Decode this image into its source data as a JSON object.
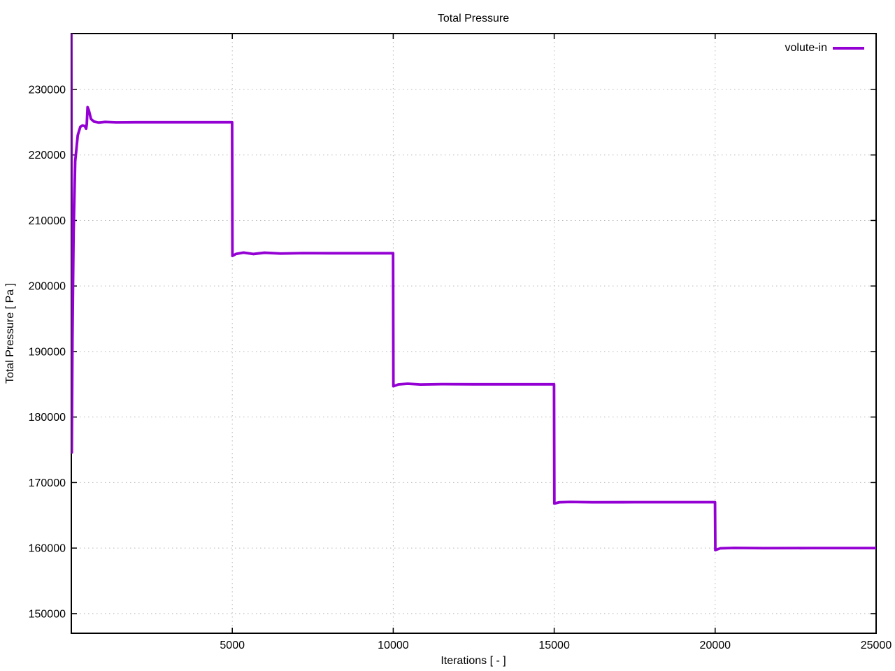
{
  "chart_data": {
    "type": "line",
    "title": "Total Pressure",
    "xlabel": "Iterations [ - ]",
    "ylabel": "Total Pressure [ Pa ]",
    "xlim": [
      0,
      25000
    ],
    "ylim": [
      147000,
      238530
    ],
    "x_ticks": [
      5000,
      10000,
      15000,
      20000,
      25000
    ],
    "y_ticks": [
      150000,
      160000,
      170000,
      180000,
      190000,
      200000,
      210000,
      220000,
      230000
    ],
    "grid": true,
    "grid_style": "dotted",
    "legend_position": "top-right-inside",
    "colors": {
      "line": "#9400d3",
      "grid": "#b8b8b8",
      "border": "#000000"
    },
    "series": [
      {
        "name": "volute-in",
        "points": [
          [
            0,
            239500
          ],
          [
            15,
            174600
          ],
          [
            35,
            192000
          ],
          [
            70,
            208000
          ],
          [
            120,
            219000
          ],
          [
            200,
            223000
          ],
          [
            280,
            224300
          ],
          [
            350,
            224500
          ],
          [
            420,
            224400
          ],
          [
            460,
            224000
          ],
          [
            480,
            224700
          ],
          [
            505,
            227300
          ],
          [
            545,
            226800
          ],
          [
            610,
            225500
          ],
          [
            700,
            225100
          ],
          [
            850,
            224950
          ],
          [
            1050,
            225050
          ],
          [
            1400,
            224980
          ],
          [
            2000,
            225000
          ],
          [
            3500,
            225000
          ],
          [
            4995,
            225000
          ],
          [
            5005,
            204600
          ],
          [
            5120,
            204900
          ],
          [
            5350,
            205100
          ],
          [
            5650,
            204880
          ],
          [
            6000,
            205080
          ],
          [
            6500,
            204950
          ],
          [
            7200,
            205020
          ],
          [
            8000,
            205000
          ],
          [
            9995,
            205000
          ],
          [
            10005,
            184700
          ],
          [
            10160,
            184980
          ],
          [
            10450,
            185080
          ],
          [
            10850,
            184960
          ],
          [
            11500,
            185020
          ],
          [
            12500,
            185000
          ],
          [
            14995,
            185000
          ],
          [
            15005,
            166800
          ],
          [
            15160,
            166990
          ],
          [
            15500,
            167040
          ],
          [
            16200,
            166990
          ],
          [
            17500,
            167000
          ],
          [
            19995,
            167000
          ],
          [
            20005,
            159700
          ],
          [
            20160,
            159960
          ],
          [
            20600,
            160030
          ],
          [
            21500,
            159990
          ],
          [
            23000,
            160000
          ],
          [
            25000,
            160000
          ]
        ]
      }
    ]
  }
}
